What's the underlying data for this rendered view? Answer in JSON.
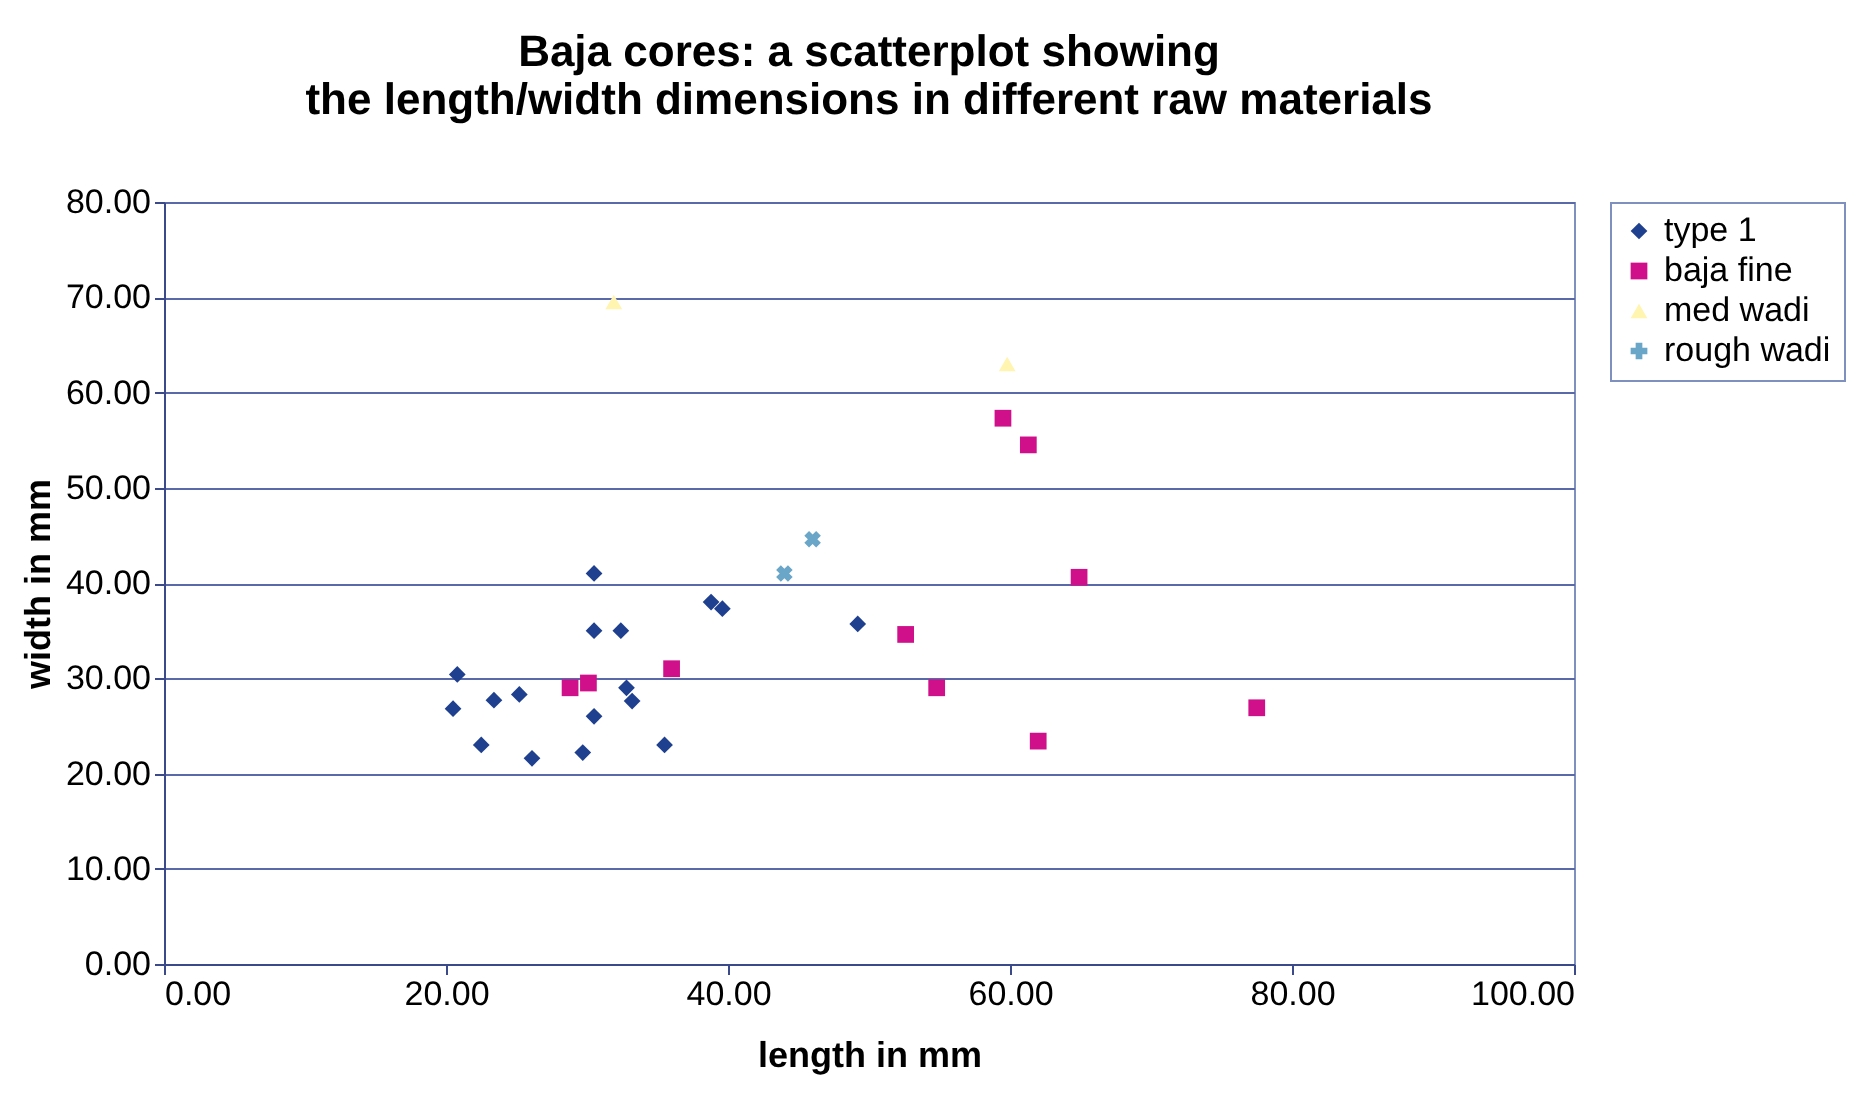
{
  "chart_data": {
    "type": "scatter",
    "title": "Baja cores: a scatterplot showing the length/width dimensions in different raw materials",
    "xlabel": "length in mm",
    "ylabel": "width in mm",
    "xlim": [
      0,
      100
    ],
    "xticks": [
      {
        "value": 0,
        "label": "0.00"
      },
      {
        "value": 20,
        "label": "20.00"
      },
      {
        "value": 40,
        "label": "40.00"
      },
      {
        "value": 60,
        "label": "60.00"
      },
      {
        "value": 80,
        "label": "80.00"
      },
      {
        "value": 100,
        "label": "100.00"
      }
    ],
    "ylim": [
      0,
      80
    ],
    "yticks": [
      {
        "value": 0,
        "label": "0.00"
      },
      {
        "value": 10,
        "label": "10.00"
      },
      {
        "value": 20,
        "label": "20.00"
      },
      {
        "value": 30,
        "label": "30.00"
      },
      {
        "value": 40,
        "label": "40.00"
      },
      {
        "value": 50,
        "label": "50.00"
      },
      {
        "value": 60,
        "label": "60.00"
      },
      {
        "value": 70,
        "label": "70.00"
      },
      {
        "value": 80,
        "label": "80.00"
      }
    ],
    "grid": "y",
    "legend": "right",
    "series": [
      {
        "name": "type 1",
        "color": "#1f3f8f",
        "marker": "diamond",
        "x": [
          30.5,
          30.5,
          32.4,
          38.8,
          39.6,
          49.2,
          20.8,
          20.5,
          22.5,
          23.4,
          25.2,
          26.1,
          29.7,
          30.5,
          32.8,
          33.2,
          35.5
        ],
        "values": [
          41,
          35,
          35,
          38,
          37.3,
          35.7,
          30.4,
          26.8,
          23,
          27.7,
          28.3,
          21.6,
          22.2,
          26,
          29,
          27.6,
          23
        ]
      },
      {
        "name": "baja fine",
        "color": "#d0108a",
        "marker": "square",
        "x": [
          28.8,
          30.1,
          36,
          52.6,
          59.5,
          61.3,
          64.9,
          54.8,
          62,
          77.5
        ],
        "values": [
          29,
          29.5,
          31,
          34.6,
          57.3,
          54.5,
          40.6,
          29,
          23.4,
          26.9
        ]
      },
      {
        "name": "med wadi",
        "color": "#fff4b0",
        "marker": "triangle",
        "x": [
          31.9,
          59.8
        ],
        "values": [
          69.5,
          63
        ]
      },
      {
        "name": "rough wadi",
        "color": "#6aa6c8",
        "marker": "cross",
        "x": [
          46,
          44
        ],
        "values": [
          44.6,
          41
        ]
      }
    ]
  }
}
